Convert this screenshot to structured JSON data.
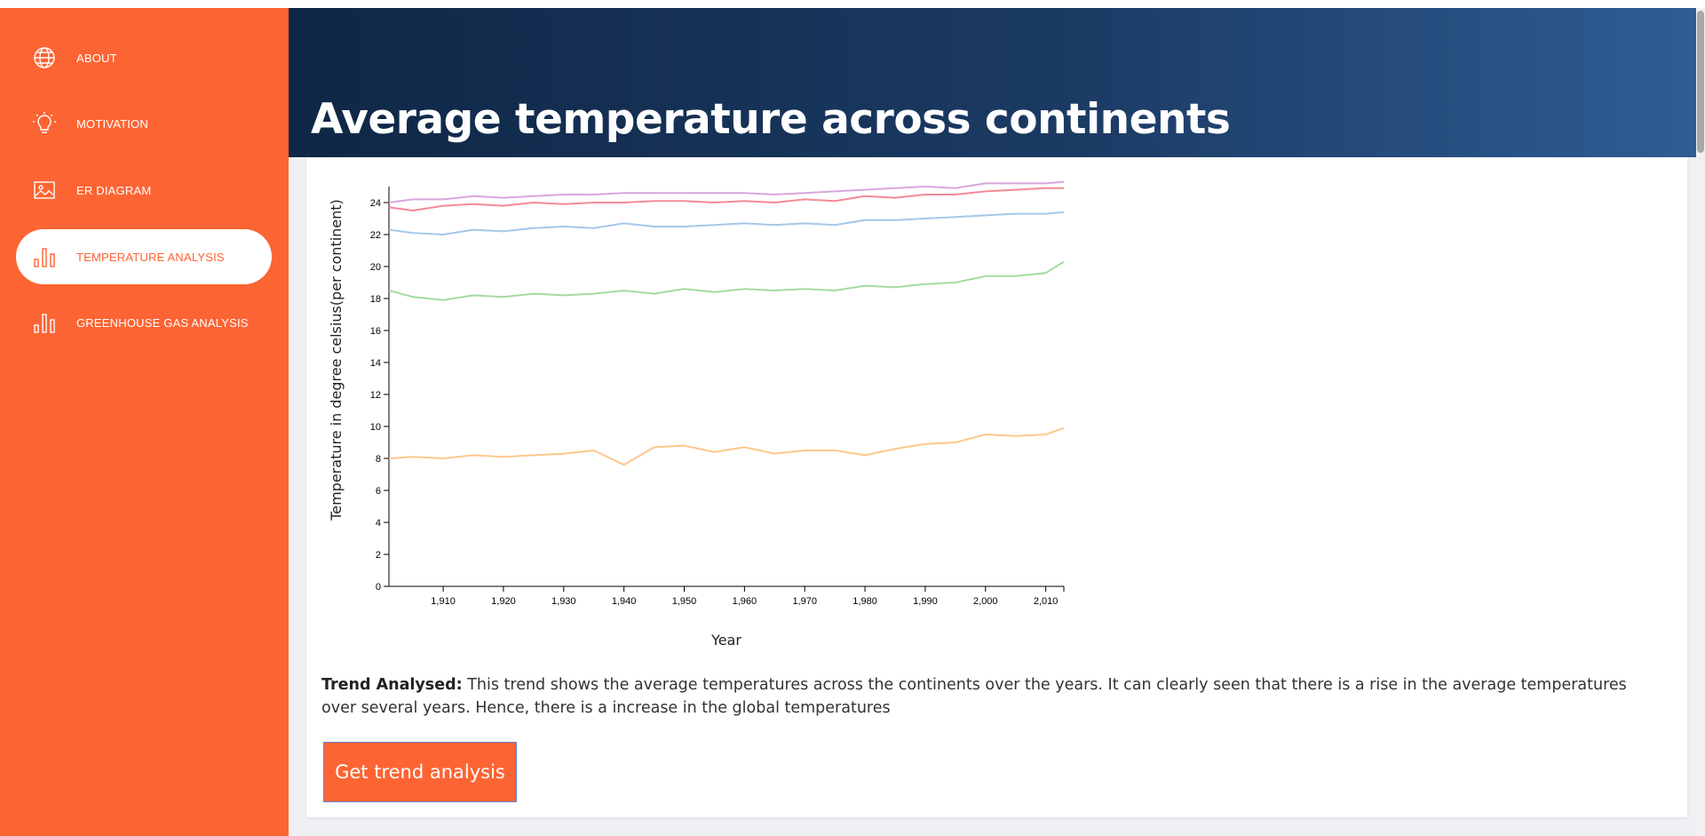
{
  "sidebar": {
    "items": [
      {
        "label": "ABOUT",
        "icon": "globe-icon"
      },
      {
        "label": "MOTIVATION",
        "icon": "lightbulb-icon"
      },
      {
        "label": "ER DIAGRAM",
        "icon": "image-icon"
      },
      {
        "label": "TEMPERATURE ANALYSIS",
        "icon": "bar-chart-icon",
        "active": true
      },
      {
        "label": "GREENHOUSE GAS ANALYSIS",
        "icon": "bar-chart-icon"
      }
    ]
  },
  "header": {
    "title": "Average temperature across continents"
  },
  "trend": {
    "label": "Trend Analysed:",
    "text": "This trend shows the average temperatures across the continents over the years. It can clearly seen that there is a rise in the average temperatures over several years. Hence, there is a increase in the global temperatures"
  },
  "button": {
    "label": "Get trend analysis"
  },
  "colors": {
    "accent": "#fd6433",
    "header_dark": "#0f2746",
    "header_light": "#2e5d94"
  },
  "chart_data": {
    "type": "line",
    "xlabel": "Year",
    "ylabel": "Temperature in degree celsius(per continent)",
    "xlim": [
      1901,
      2013
    ],
    "ylim": [
      0,
      25
    ],
    "x_ticks": [
      "1,910",
      "1,920",
      "1,930",
      "1,940",
      "1,950",
      "1,960",
      "1,970",
      "1,980",
      "1,990",
      "2,000",
      "2,010"
    ],
    "y_ticks": [
      "0",
      "2",
      "4",
      "6",
      "8",
      "10",
      "12",
      "14",
      "16",
      "18",
      "20",
      "22",
      "24"
    ],
    "x": [
      1901,
      1905,
      1910,
      1915,
      1920,
      1925,
      1930,
      1935,
      1940,
      1945,
      1950,
      1955,
      1960,
      1965,
      1970,
      1975,
      1980,
      1985,
      1990,
      1995,
      2000,
      2005,
      2010,
      2013
    ],
    "series": [
      {
        "color": "#d9a6db",
        "values": [
          24.0,
          24.2,
          24.2,
          24.4,
          24.3,
          24.4,
          24.5,
          24.5,
          24.6,
          24.6,
          24.6,
          24.6,
          24.6,
          24.5,
          24.6,
          24.7,
          24.8,
          24.9,
          25.0,
          24.9,
          25.2,
          25.2,
          25.2,
          25.3
        ]
      },
      {
        "color": "#f28b96",
        "values": [
          23.7,
          23.5,
          23.8,
          23.9,
          23.8,
          24.0,
          23.9,
          24.0,
          24.0,
          24.1,
          24.1,
          24.0,
          24.1,
          24.0,
          24.2,
          24.1,
          24.4,
          24.3,
          24.5,
          24.5,
          24.7,
          24.8,
          24.9,
          24.9
        ]
      },
      {
        "color": "#a6c7e8",
        "values": [
          22.3,
          22.1,
          22.0,
          22.3,
          22.2,
          22.4,
          22.5,
          22.4,
          22.7,
          22.5,
          22.5,
          22.6,
          22.7,
          22.6,
          22.7,
          22.6,
          22.9,
          22.9,
          23.0,
          23.1,
          23.2,
          23.3,
          23.3,
          23.4
        ]
      },
      {
        "color": "#a3dba0",
        "values": [
          18.5,
          18.1,
          17.9,
          18.2,
          18.1,
          18.3,
          18.2,
          18.3,
          18.5,
          18.3,
          18.6,
          18.4,
          18.6,
          18.5,
          18.6,
          18.5,
          18.8,
          18.7,
          18.9,
          19.0,
          19.4,
          19.4,
          19.6,
          20.3
        ]
      },
      {
        "color": "#fdc78c",
        "values": [
          8.0,
          8.1,
          8.0,
          8.2,
          8.1,
          8.2,
          8.3,
          8.5,
          7.6,
          8.7,
          8.8,
          8.4,
          8.7,
          8.3,
          8.5,
          8.5,
          8.2,
          8.6,
          8.9,
          9.0,
          9.5,
          9.4,
          9.5,
          9.9
        ]
      }
    ]
  }
}
